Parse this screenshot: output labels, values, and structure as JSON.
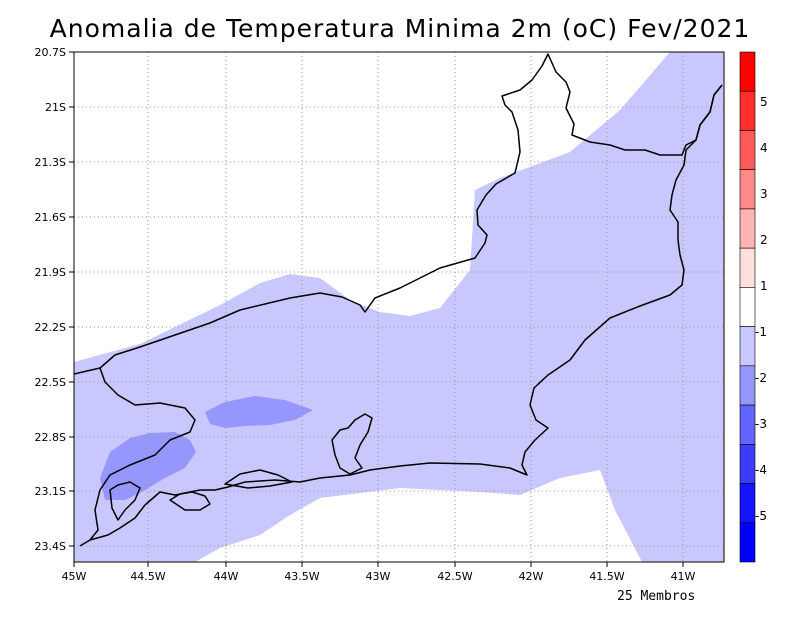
{
  "title": "Anomalia de Temperatura Minima 2m (oC) Fev/2021",
  "footer_note": "25 Membros",
  "map": {
    "lon_range": [
      -45,
      -40.7
    ],
    "lat_range": [
      -23.5,
      -20.7
    ],
    "lon_ticks": [
      "45W",
      "44.5W",
      "44W",
      "43.5W",
      "43W",
      "42.5W",
      "42W",
      "41.5W",
      "41W"
    ],
    "lat_ticks": [
      "20.7S",
      "21S",
      "21.3S",
      "21.6S",
      "21.9S",
      "22.2S",
      "22.5S",
      "22.8S",
      "23.1S",
      "23.4S"
    ],
    "gridlines": true,
    "gridline_style": "dotted",
    "field_colors": {
      "anomaly_-1_to_-2": "#c8c8ff",
      "anomaly_-2_to_-3": "#9696ff",
      "coastline": "#000000"
    }
  },
  "colorbar": {
    "labels": [
      "5",
      "4",
      "3",
      "2",
      "1",
      "-1",
      "-2",
      "-3",
      "-4",
      "-5"
    ],
    "colors": [
      "#ff0000",
      "#ff2d2d",
      "#ff5a5a",
      "#ff8888",
      "#ffb4b4",
      "#ffdede",
      "#ffffff",
      "#c8c8ff",
      "#9696ff",
      "#6464ff",
      "#3c3cff",
      "#1414ff",
      "#0000ff"
    ]
  }
}
